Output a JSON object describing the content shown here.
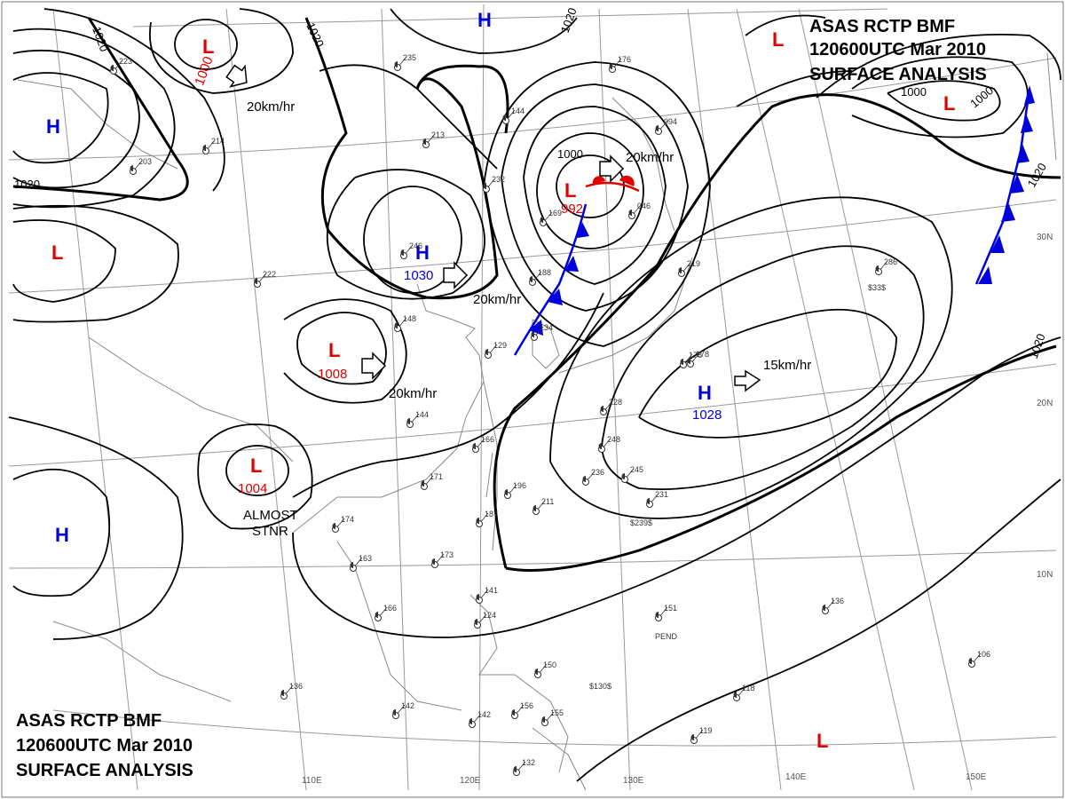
{
  "header": {
    "line1": "ASAS     RCTP    BMF",
    "line2": "120600UTC    Mar    2010",
    "line3": "SURFACE ANALYSIS"
  },
  "footer": {
    "line1": "ASAS     RCTP    BMF",
    "line2": "120600UTC    Mar    2010",
    "line3": "SURFACE ANALYSIS"
  },
  "longitude_labels": [
    "110E",
    "120E",
    "130E",
    "140E",
    "150E"
  ],
  "latitude_labels": [
    "30N",
    "20N",
    "10N"
  ],
  "isobar_labels": [
    "1020",
    "1020",
    "1020",
    "1000",
    "1020",
    "1000",
    "1000",
    "1020",
    "1020"
  ],
  "systems": [
    {
      "type": "L",
      "pressure": "1000",
      "color": "#e00000"
    },
    {
      "type": "H",
      "pressure": "",
      "color": "#0000dd"
    },
    {
      "type": "L",
      "pressure": "",
      "color": "#e00000"
    },
    {
      "type": "H",
      "pressure": "",
      "color": "#0000dd"
    },
    {
      "type": "H",
      "pressure": "1030",
      "color": "#0000dd"
    },
    {
      "type": "L",
      "pressure": "992",
      "color": "#e00000"
    },
    {
      "type": "L",
      "pressure": "1008",
      "color": "#e00000"
    },
    {
      "type": "L",
      "pressure": "1004",
      "color": "#e00000"
    },
    {
      "type": "H",
      "pressure": "",
      "color": "#0000dd"
    },
    {
      "type": "H",
      "pressure": "1028",
      "color": "#0000dd"
    },
    {
      "type": "L",
      "pressure": "",
      "color": "#e00000"
    },
    {
      "type": "L",
      "pressure": "",
      "color": "#e00000"
    },
    {
      "type": "L",
      "pressure": "",
      "color": "#e00000"
    }
  ],
  "motion_labels": [
    "20km/hr",
    "20km/hr",
    "20km/hr",
    "20km/hr",
    "15km/hr"
  ],
  "notes": {
    "stationary_line1": "ALMOST",
    "stationary_line2": "STNR"
  },
  "colors": {
    "low": "#e00000",
    "high": "#0000dd",
    "cold_front": "#0000dd",
    "warm_front": "#e00000",
    "isobar": "#000000",
    "coastline": "#888888",
    "grid": "#999999"
  },
  "stations": [
    {
      "text": "223"
    },
    {
      "text": "235"
    },
    {
      "text": "213"
    },
    {
      "text": "214"
    },
    {
      "text": "203"
    },
    {
      "text": "144"
    },
    {
      "text": "232"
    },
    {
      "text": "169"
    },
    {
      "text": "094"
    },
    {
      "text": "046"
    },
    {
      "text": "246"
    },
    {
      "text": "188"
    },
    {
      "text": "222"
    },
    {
      "text": "148"
    },
    {
      "text": "134"
    },
    {
      "text": "129"
    },
    {
      "text": "178"
    },
    {
      "text": "219"
    },
    {
      "text": "286"
    },
    {
      "text": "144"
    },
    {
      "text": "166"
    },
    {
      "text": "171"
    },
    {
      "text": "196"
    },
    {
      "text": "211"
    },
    {
      "text": "187"
    },
    {
      "text": "248"
    },
    {
      "text": "245"
    },
    {
      "text": "231"
    },
    {
      "text": "174"
    },
    {
      "text": "163"
    },
    {
      "text": "173"
    },
    {
      "text": "166"
    },
    {
      "text": "141"
    },
    {
      "text": "124"
    },
    {
      "text": "150"
    },
    {
      "text": "136"
    },
    {
      "text": "151"
    },
    {
      "text": "136"
    },
    {
      "text": "106"
    },
    {
      "text": "118"
    },
    {
      "text": "142"
    },
    {
      "text": "142"
    },
    {
      "text": "156"
    },
    {
      "text": "155"
    },
    {
      "text": "132"
    },
    {
      "text": "119"
    },
    {
      "text": "178"
    },
    {
      "text": "228"
    },
    {
      "text": "236"
    },
    {
      "text": "176"
    }
  ],
  "map_text": {
    "pend": "PEND",
    "s239": "$239$",
    "s130": "$130$",
    "s33": "$33$"
  }
}
